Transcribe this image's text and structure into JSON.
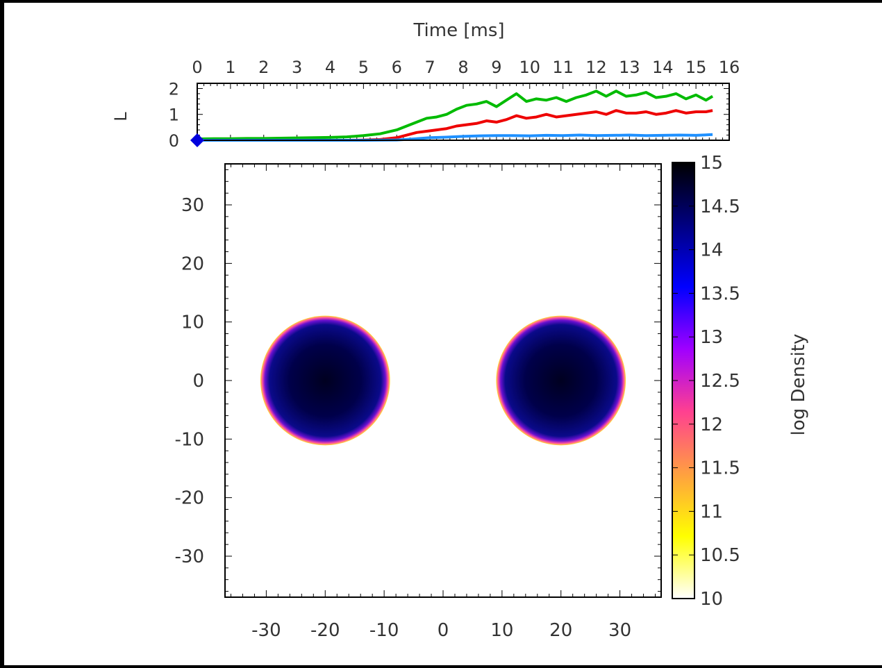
{
  "chart_data": [
    {
      "type": "line",
      "title": "",
      "xlabel": "Time [ms]",
      "ylabel": "L",
      "xlim": [
        0,
        16
      ],
      "ylim": [
        0,
        2.2
      ],
      "xticks": [
        "0",
        "1",
        "2",
        "3",
        "4",
        "5",
        "6",
        "7",
        "8",
        "9",
        "10",
        "11",
        "12",
        "13",
        "14",
        "15",
        "16"
      ],
      "yticks": [
        "0",
        "1",
        "2"
      ],
      "grid": false,
      "legend": "none",
      "series": [
        {
          "color": "#00bb00",
          "x": [
            0,
            0.5,
            1,
            1.5,
            2,
            2.5,
            3,
            3.5,
            4,
            4.5,
            5,
            5.5,
            6,
            6.3,
            6.6,
            6.9,
            7.2,
            7.5,
            7.8,
            8.1,
            8.4,
            8.7,
            9.0,
            9.3,
            9.6,
            9.9,
            10.2,
            10.5,
            10.8,
            11.1,
            11.4,
            11.7,
            12.0,
            12.3,
            12.6,
            12.9,
            13.2,
            13.5,
            13.8,
            14.1,
            14.4,
            14.7,
            15.0,
            15.3,
            15.5
          ],
          "y": [
            0.05,
            0.06,
            0.06,
            0.07,
            0.07,
            0.08,
            0.09,
            0.1,
            0.11,
            0.13,
            0.18,
            0.25,
            0.4,
            0.55,
            0.7,
            0.85,
            0.9,
            1.0,
            1.2,
            1.35,
            1.4,
            1.5,
            1.3,
            1.55,
            1.8,
            1.5,
            1.6,
            1.55,
            1.65,
            1.5,
            1.65,
            1.75,
            1.9,
            1.7,
            1.9,
            1.7,
            1.75,
            1.85,
            1.65,
            1.7,
            1.8,
            1.6,
            1.75,
            1.55,
            1.7
          ]
        },
        {
          "color": "#ee0000",
          "x": [
            0,
            0.5,
            1,
            1.5,
            2,
            2.5,
            3,
            3.5,
            4,
            4.5,
            5,
            5.5,
            6,
            6.3,
            6.6,
            6.9,
            7.2,
            7.5,
            7.8,
            8.1,
            8.4,
            8.7,
            9.0,
            9.3,
            9.6,
            9.9,
            10.2,
            10.5,
            10.8,
            11.1,
            11.4,
            11.7,
            12.0,
            12.3,
            12.6,
            12.9,
            13.2,
            13.5,
            13.8,
            14.1,
            14.4,
            14.7,
            15.0,
            15.3,
            15.5
          ],
          "y": [
            0,
            0,
            0,
            0,
            0,
            0,
            0,
            0,
            0,
            0,
            0.01,
            0.03,
            0.1,
            0.2,
            0.3,
            0.35,
            0.4,
            0.45,
            0.55,
            0.6,
            0.65,
            0.75,
            0.7,
            0.8,
            0.95,
            0.85,
            0.9,
            1.0,
            0.9,
            0.95,
            1.0,
            1.05,
            1.1,
            1.0,
            1.15,
            1.05,
            1.05,
            1.1,
            1.0,
            1.05,
            1.15,
            1.05,
            1.1,
            1.1,
            1.15
          ]
        },
        {
          "color": "#1e90ff",
          "x": [
            0,
            1,
            2,
            3,
            4,
            5,
            6,
            6.5,
            7,
            7.5,
            8,
            8.5,
            9,
            9.5,
            10,
            10.5,
            11,
            11.5,
            12,
            12.5,
            13,
            13.5,
            14,
            14.5,
            15,
            15.5
          ],
          "y": [
            0,
            0,
            0,
            0,
            0,
            0,
            0.01,
            0.05,
            0.1,
            0.12,
            0.15,
            0.17,
            0.18,
            0.18,
            0.17,
            0.19,
            0.18,
            0.2,
            0.18,
            0.19,
            0.2,
            0.18,
            0.19,
            0.2,
            0.19,
            0.22
          ]
        }
      ],
      "markers": [
        {
          "x": 0,
          "y": 0,
          "color": "#0000dd",
          "shape": "diamond"
        }
      ]
    },
    {
      "type": "heatmap",
      "title": "",
      "xlabel": "",
      "ylabel": "",
      "xlim": [
        -37,
        37
      ],
      "ylim": [
        -37,
        37
      ],
      "xticks": [
        "-30",
        "-20",
        "-10",
        "0",
        "10",
        "20",
        "30"
      ],
      "yticks": [
        "30",
        "20",
        "10",
        "0",
        "-10",
        "-20",
        "-30"
      ],
      "colorbar": {
        "label": "log Density",
        "range": [
          10,
          15
        ],
        "ticks": [
          "15",
          "14.5",
          "14",
          "13.5",
          "13",
          "12.5",
          "12",
          "11.5",
          "11",
          "10.5",
          "10"
        ],
        "colormap": [
          "#ffffff",
          "#ffff00",
          "#ffa040",
          "#ff4090",
          "#a000ff",
          "#0000ff",
          "#000080",
          "#000000"
        ]
      },
      "blobs": [
        {
          "cx": -20,
          "cy": 0,
          "r": 11,
          "core_value": 14.8
        },
        {
          "cx": 20,
          "cy": 0,
          "r": 11,
          "core_value": 14.8
        }
      ]
    }
  ]
}
